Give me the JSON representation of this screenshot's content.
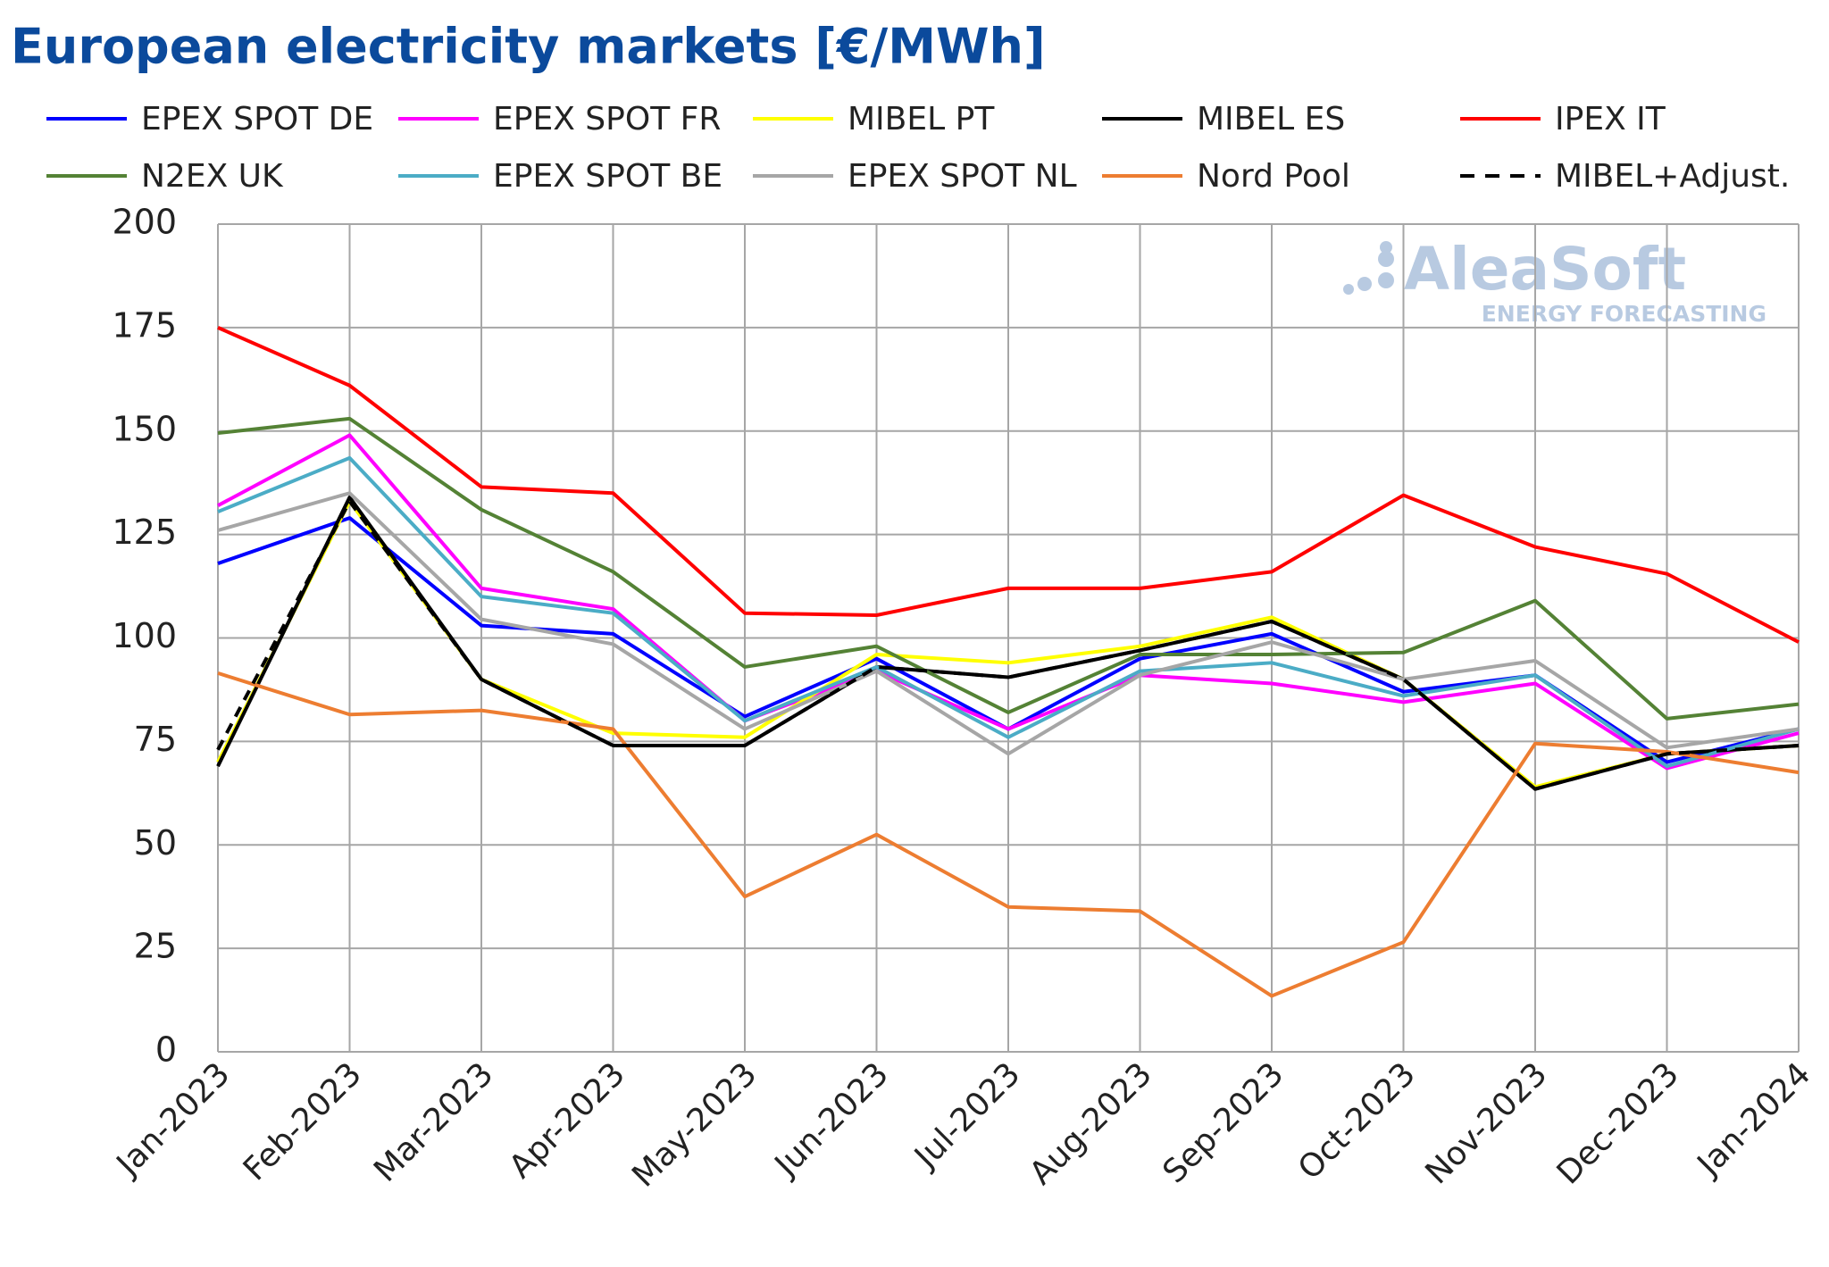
{
  "chart_data": {
    "type": "line",
    "title": "European electricity markets [€/MWh]",
    "watermark": {
      "name": "AleaSoft",
      "tagline": "ENERGY FORECASTING"
    },
    "legend": "top",
    "grid": true,
    "categories": [
      "Jan-2023",
      "Feb-2023",
      "Mar-2023",
      "Apr-2023",
      "May-2023",
      "Jun-2023",
      "Jul-2023",
      "Aug-2023",
      "Sep-2023",
      "Oct-2023",
      "Nov-2023",
      "Dec-2023",
      "Jan-2024"
    ],
    "ylim": [
      0,
      200
    ],
    "yticks": [
      0,
      25,
      50,
      75,
      100,
      125,
      150,
      175,
      200
    ],
    "series": [
      {
        "name": "EPEX SPOT DE",
        "color": "#0000ff",
        "values": [
          118,
          129,
          103,
          101,
          81,
          95,
          78,
          95,
          101,
          87,
          91,
          70,
          78
        ]
      },
      {
        "name": "EPEX SPOT FR",
        "color": "#ff00ff",
        "values": [
          132,
          149,
          112,
          107,
          80,
          92,
          78,
          91,
          89,
          84.5,
          89,
          68.5,
          77
        ]
      },
      {
        "name": "MIBEL PT",
        "color": "#ffff00",
        "values": [
          70,
          133,
          90,
          77,
          76,
          96,
          94,
          98,
          105,
          90,
          64,
          72,
          74
        ]
      },
      {
        "name": "MIBEL ES",
        "color": "#000000",
        "values": [
          69,
          134,
          90,
          74,
          74,
          93,
          90.5,
          97,
          104,
          90,
          63.5,
          72,
          74
        ]
      },
      {
        "name": "IPEX IT",
        "color": "#ff0000",
        "values": [
          175,
          161,
          136.5,
          135,
          106,
          105.5,
          112,
          112,
          116,
          134.5,
          122,
          115.5,
          99
        ]
      },
      {
        "name": "N2EX UK",
        "color": "#548235",
        "values": [
          149.5,
          153,
          131,
          116,
          93,
          98,
          82,
          96,
          96,
          96.5,
          109,
          80.5,
          84
        ]
      },
      {
        "name": "EPEX SPOT BE",
        "color": "#4bacc6",
        "values": [
          130.5,
          143.5,
          110,
          106,
          80,
          93,
          76,
          92,
          94,
          86,
          91,
          69,
          78
        ]
      },
      {
        "name": "EPEX SPOT NL",
        "color": "#a6a6a6",
        "values": [
          126,
          135,
          104.5,
          98.5,
          78,
          92,
          72,
          91,
          99,
          90,
          94.5,
          73.5,
          78
        ]
      },
      {
        "name": "Nord Pool",
        "color": "#ed7d31",
        "values": [
          91.5,
          81.5,
          82.5,
          78,
          37.5,
          52.5,
          35,
          34,
          13.5,
          26.5,
          74.5,
          72.5,
          67.5
        ]
      },
      {
        "name": "MIBEL+Adjust.",
        "color": "#000000",
        "dashed": true,
        "values": [
          73,
          133,
          90,
          74,
          74,
          93,
          90.5,
          97,
          104,
          90,
          63.5,
          72,
          74
        ]
      }
    ]
  }
}
